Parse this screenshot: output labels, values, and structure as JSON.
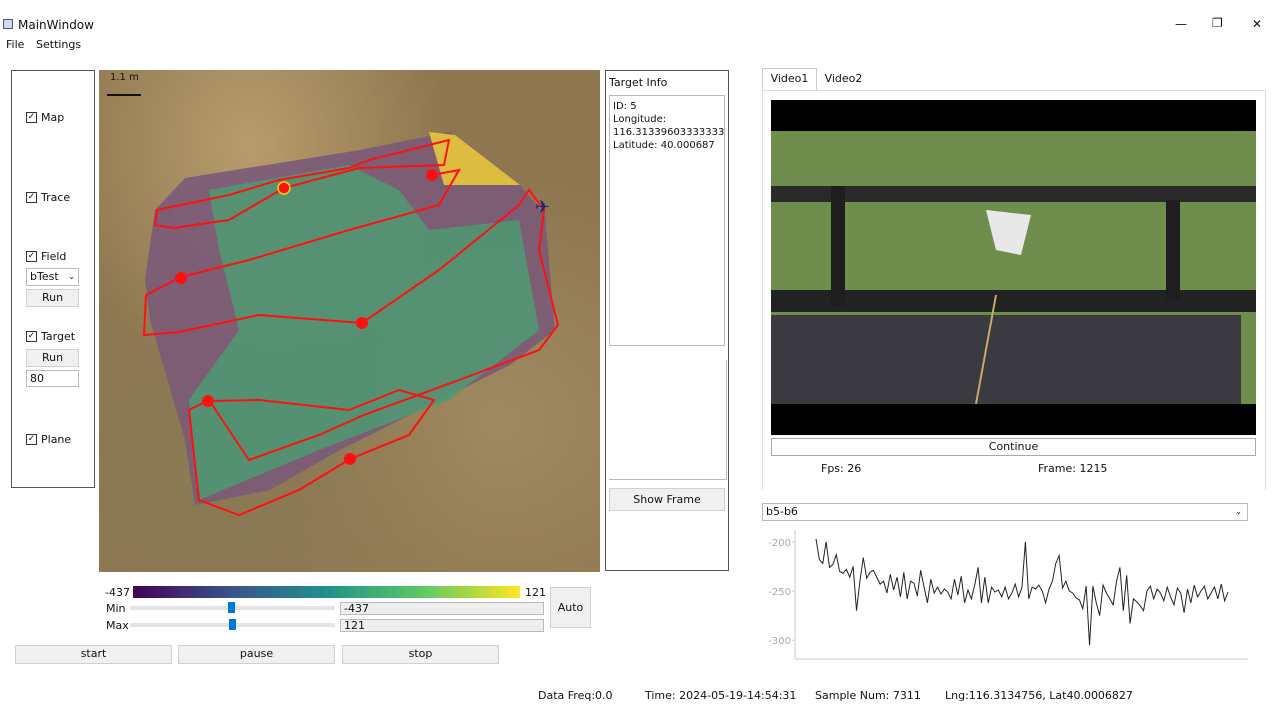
{
  "window": {
    "title": "MainWindow",
    "minimize": "—",
    "maximize": "❐",
    "close": "✕"
  },
  "menu": [
    "File",
    "Settings"
  ],
  "left_panel": {
    "map": "Map",
    "trace": "Trace",
    "field": "Field",
    "field_select": "bTest",
    "field_run": "Run",
    "target": "Target",
    "target_run": "Run",
    "target_value": "80",
    "plane": "Plane",
    "checked": [
      true,
      true,
      true,
      true,
      true
    ]
  },
  "map": {
    "scale_label": "1.1 m",
    "colors": {
      "field_high": "#f0d020",
      "trace": "#ff1010",
      "target_selected_ring": "#f5d000",
      "plane": "#1a237e"
    }
  },
  "colorbar": {
    "min_label": "-437",
    "max_label": "121",
    "min_text": "Min",
    "max_text": "Max",
    "min_value": "-437",
    "max_value": "121",
    "min_slider_fraction": 0.5,
    "max_slider_fraction": 0.5,
    "auto": "Auto"
  },
  "controls": {
    "start": "start",
    "pause": "pause",
    "stop": "stop"
  },
  "target_info": {
    "title": "Target Info",
    "lines": [
      "ID: 5",
      "Longitude:",
      "116.31339603333333",
      "Latitude: 40.000687"
    ],
    "show_frame": "Show Frame"
  },
  "video": {
    "tabs": [
      "Video1",
      "Video2"
    ],
    "active_tab": 0,
    "continue": "Continue",
    "fps": "Fps: 26",
    "frame": "Frame: 1215"
  },
  "signal": {
    "select": "b5-b6"
  },
  "chart_data": {
    "type": "line",
    "yticks": [
      "-200",
      "-250",
      "-300"
    ],
    "ylim": [
      -315,
      -188
    ],
    "grid": false,
    "values": [
      -197,
      -218,
      -222,
      -200,
      -226,
      -223,
      -213,
      -230,
      -232,
      -228,
      -236,
      -225,
      -270,
      -240,
      -216,
      -237,
      -231,
      -229,
      -236,
      -243,
      -240,
      -252,
      -233,
      -249,
      -236,
      -256,
      -231,
      -258,
      -240,
      -242,
      -255,
      -229,
      -246,
      -262,
      -238,
      -252,
      -246,
      -253,
      -248,
      -251,
      -258,
      -238,
      -254,
      -235,
      -262,
      -249,
      -258,
      -244,
      -226,
      -262,
      -236,
      -262,
      -246,
      -251,
      -249,
      -256,
      -246,
      -258,
      -252,
      -243,
      -256,
      -246,
      -200,
      -258,
      -246,
      -248,
      -244,
      -250,
      -262,
      -248,
      -240,
      -222,
      -214,
      -247,
      -240,
      -250,
      -252,
      -257,
      -259,
      -268,
      -245,
      -305,
      -245,
      -262,
      -275,
      -244,
      -252,
      -258,
      -264,
      -240,
      -226,
      -270,
      -234,
      -283,
      -258,
      -261,
      -265,
      -270,
      -250,
      -245,
      -258,
      -248,
      -252,
      -260,
      -246,
      -256,
      -264,
      -247,
      -252,
      -272,
      -248,
      -262,
      -244,
      -256,
      -250,
      -245,
      -258,
      -252,
      -246,
      -258,
      -243,
      -260,
      -251
    ]
  },
  "status": {
    "freq": "Data Freq:0.0",
    "time": "Time: 2024-05-19-14:54:31",
    "samples": "Sample Num: 7311",
    "position": "Lng:116.3134756, Lat40.0006827"
  }
}
